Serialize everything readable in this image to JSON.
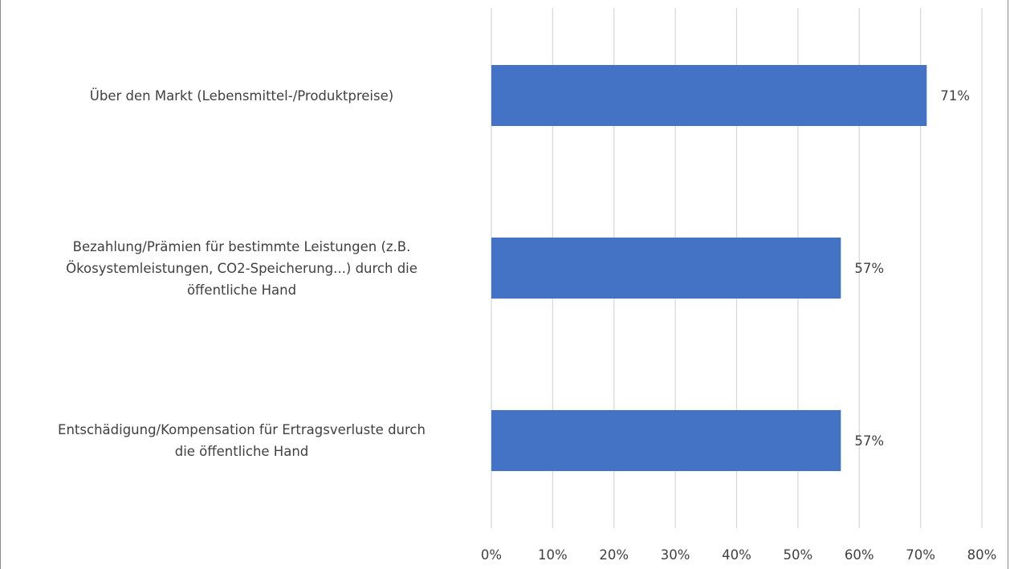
{
  "chart_data": {
    "type": "bar",
    "orientation": "horizontal",
    "categories": [
      [
        "Über den Markt (Lebensmittel-/Produktpreise)"
      ],
      [
        "Bezahlung/Prämien für bestimmte Leistungen (z.B.",
        "Ökosystemleistungen, CO2-Speicherung...) durch die",
        "öffentliche Hand"
      ],
      [
        "Entschädigung/Kompensation für Ertragsverluste durch",
        "die öffentliche Hand"
      ]
    ],
    "values": [
      71,
      57,
      57
    ],
    "data_labels": [
      "71%",
      "57%",
      "57%"
    ],
    "x_ticks": [
      0,
      10,
      20,
      30,
      40,
      50,
      60,
      70,
      80
    ],
    "x_tick_labels": [
      "0%",
      "10%",
      "20%",
      "30%",
      "40%",
      "50%",
      "60%",
      "70%",
      "80%"
    ],
    "xlim": [
      0,
      80
    ],
    "grid": "vertical",
    "bar_color": "#4472C4",
    "gridline_color": "#D9D9D9",
    "text_color": "#404040",
    "title": "",
    "xlabel": "",
    "ylabel": ""
  }
}
